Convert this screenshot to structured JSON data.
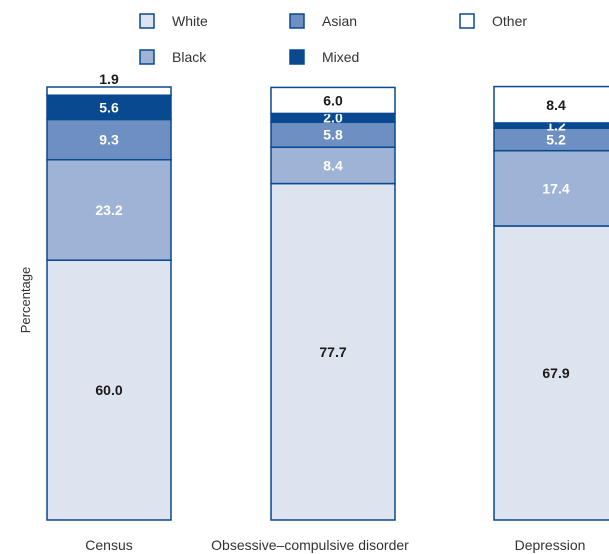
{
  "chart_data": {
    "type": "bar",
    "stacked": true,
    "ylabel": "Percentage",
    "ylim": [
      0,
      100
    ],
    "grid": false,
    "legend_position": "top",
    "categories": [
      "Census",
      "Obsessive–compulsive disorder",
      "Depression"
    ],
    "series": [
      {
        "name": "White",
        "color": "#dde3ef",
        "label_color": "#1a1a1a",
        "values": [
          60.0,
          77.7,
          67.9
        ]
      },
      {
        "name": "Black",
        "color": "#9fb3d6",
        "label_color": "#ffffff",
        "values": [
          23.2,
          8.4,
          17.4
        ]
      },
      {
        "name": "Asian",
        "color": "#6e8fc2",
        "label_color": "#ffffff",
        "values": [
          9.3,
          5.8,
          5.2
        ]
      },
      {
        "name": "Mixed",
        "color": "#08498f",
        "label_color": "#ffffff",
        "values": [
          5.6,
          2.0,
          1.2
        ]
      },
      {
        "name": "Other",
        "color": "#ffffff",
        "label_color": "#1a1a1a",
        "values": [
          1.9,
          6.0,
          8.4
        ]
      }
    ],
    "legend_layout": [
      [
        "White",
        "Asian",
        "Other"
      ],
      [
        "Black",
        "Mixed"
      ]
    ],
    "stroke_color": "#08498f"
  }
}
